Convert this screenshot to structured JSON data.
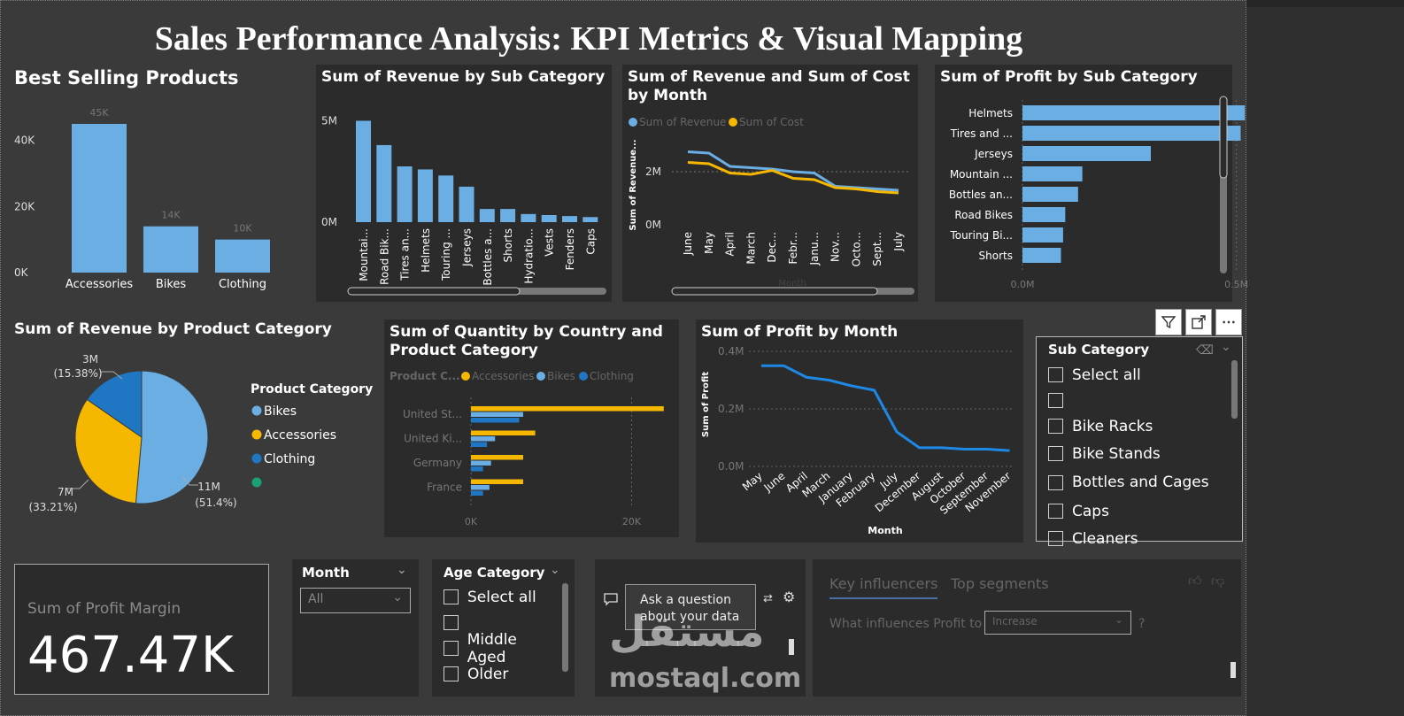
{
  "page_title": "Sales Performance Analysis: KPI Metrics & Visual Mapping",
  "colors": {
    "blue": "#6aaee4",
    "yellow": "#f5b700",
    "dark_blue": "#1f77c4",
    "green": "#1aa178",
    "line_blue": "#1e88e5"
  },
  "best_selling": {
    "title": "Best Selling Products",
    "yticks": [
      "0K",
      "20K",
      "40K"
    ],
    "categories": [
      "Accessories",
      "Bikes",
      "Clothing"
    ],
    "labels": [
      "45K",
      "14K",
      "10K"
    ]
  },
  "rev_subcat": {
    "title": "Sum of Revenue by Sub Category",
    "yticks": [
      "0M",
      "5M"
    ],
    "categories": [
      "Mountai...",
      "Road Bik...",
      "Tires an...",
      "Helmets",
      "Touring ...",
      "Jerseys",
      "Bottles a...",
      "Shorts",
      "Hydratio...",
      "Vests",
      "Fenders",
      "Caps"
    ]
  },
  "rev_cost": {
    "title": "Sum of Revenue and Sum of Cost by Month",
    "legend": [
      "Sum of Revenue",
      "Sum of Cost"
    ],
    "yticks": [
      "0M",
      "2M"
    ],
    "ylabel": "Sum of Revenue...",
    "xlabel": "Month",
    "months": [
      "June",
      "May",
      "April",
      "March",
      "Dec...",
      "Febr...",
      "Janu...",
      "Nov...",
      "Octo...",
      "Sept...",
      "July"
    ]
  },
  "profit_subcat": {
    "title": "Sum of Profit by Sub Category",
    "categories": [
      "Helmets",
      "Tires and ...",
      "Jerseys",
      "Mountain ...",
      "Bottles an...",
      "Road Bikes",
      "Touring Bi...",
      "Shorts"
    ],
    "xticks": [
      "0.0M",
      "0.5M"
    ]
  },
  "pie": {
    "title": "Sum of Revenue by Product Category",
    "legend_title": "Product Category",
    "legend": [
      "Bikes",
      "Accessories",
      "Clothing",
      ""
    ],
    "label_bikes": [
      "11M",
      "(51.4%)"
    ],
    "label_acc": [
      "7M",
      "(33.21%)"
    ],
    "label_cloth": [
      "3M",
      "(15.38%)"
    ]
  },
  "qty_country": {
    "title": "Sum of Quantity by Country and Product Category",
    "legend_title": "Product C...",
    "legend": [
      "Accessories",
      "Bikes",
      "Clothing"
    ],
    "countries": [
      "United St...",
      "United Ki...",
      "Germany",
      "France"
    ],
    "xticks": [
      "0K",
      "20K"
    ]
  },
  "profit_month": {
    "title": "Sum of Profit by Month",
    "yticks": [
      "0.0M",
      "0.2M",
      "0.4M"
    ],
    "ylabel": "Sum of Profit",
    "xlabel": "Month",
    "months": [
      "May",
      "June",
      "April",
      "March",
      "January",
      "February",
      "July",
      "December",
      "August",
      "October",
      "September",
      "November"
    ]
  },
  "subcat_slicer": {
    "title": "Sub Category",
    "items": [
      "Select all",
      "",
      "Bike Racks",
      "Bike Stands",
      "Bottles and Cages",
      "Caps",
      "Cleaners"
    ]
  },
  "kpi": {
    "label": "Sum of Profit Margin",
    "value": "467.47K"
  },
  "month_slicer": {
    "title": "Month",
    "value": "All"
  },
  "age_slicer": {
    "title": "Age Category",
    "items": [
      "Select all",
      "",
      "Middle Aged",
      "Older"
    ]
  },
  "qa": {
    "prompt": "Ask a question about your data"
  },
  "influencers": {
    "tabs": [
      "Key influencers",
      "Top segments"
    ],
    "question_prefix": "What influences Profit to",
    "dropdown": "Increase",
    "question_suffix": "?"
  },
  "watermark": {
    "arabic": "مستقل",
    "latin": "mostaql.com"
  },
  "chart_data": [
    {
      "type": "bar",
      "title": "Best Selling Products",
      "categories": [
        "Accessories",
        "Bikes",
        "Clothing"
      ],
      "values": [
        45000,
        14000,
        10000
      ],
      "ylim": [
        0,
        45000
      ]
    },
    {
      "type": "bar",
      "title": "Sum of Revenue by Sub Category",
      "categories": [
        "Mountai...",
        "Road Bik...",
        "Tires an...",
        "Helmets",
        "Touring ...",
        "Jerseys",
        "Bottles a...",
        "Shorts",
        "Hydratio...",
        "Vests",
        "Fenders",
        "Caps"
      ],
      "values": [
        5.0,
        3.8,
        2.75,
        2.6,
        2.3,
        1.75,
        0.65,
        0.65,
        0.4,
        0.35,
        0.3,
        0.25
      ],
      "ylim": [
        0,
        5.5
      ]
    },
    {
      "type": "line",
      "title": "Sum of Revenue and Sum of Cost by Month",
      "x": [
        "June",
        "May",
        "April",
        "March",
        "Dec...",
        "Febr...",
        "Janu...",
        "Nov...",
        "Octo...",
        "Sept...",
        "July"
      ],
      "series": [
        {
          "name": "Sum of Revenue",
          "values": [
            2.75,
            2.7,
            2.2,
            2.15,
            2.1,
            2.0,
            1.95,
            1.45,
            1.4,
            1.35,
            1.3
          ]
        },
        {
          "name": "Sum of Cost",
          "values": [
            2.35,
            2.3,
            1.95,
            1.9,
            2.05,
            1.75,
            1.7,
            1.4,
            1.35,
            1.25,
            1.2
          ]
        }
      ],
      "ylim": [
        0,
        3.2
      ]
    },
    {
      "type": "bar",
      "title": "Sum of Profit by Sub Category",
      "categories": [
        "Helmets",
        "Tires and ...",
        "Jerseys",
        "Mountain ...",
        "Bottles an...",
        "Road Bikes",
        "Touring Bi...",
        "Shorts"
      ],
      "values": [
        0.52,
        0.51,
        0.3,
        0.14,
        0.13,
        0.1,
        0.095,
        0.09
      ],
      "xlim": [
        0,
        0.6
      ]
    },
    {
      "type": "pie",
      "title": "Sum of Revenue by Product Category",
      "categories": [
        "Bikes",
        "Accessories",
        "Clothing"
      ],
      "values": [
        51.4,
        33.21,
        15.38
      ]
    },
    {
      "type": "bar",
      "title": "Sum of Quantity by Country and Product Category",
      "categories": [
        "United St...",
        "United Ki...",
        "Germany",
        "France"
      ],
      "series": [
        {
          "name": "Accessories",
          "values": [
            24000,
            8000,
            6500,
            6500
          ]
        },
        {
          "name": "Bikes",
          "values": [
            6500,
            3000,
            2500,
            2300
          ]
        },
        {
          "name": "Clothing",
          "values": [
            6000,
            2000,
            1500,
            1500
          ]
        }
      ],
      "xlim": [
        0,
        27000
      ]
    },
    {
      "type": "line",
      "title": "Sum of Profit by Month",
      "x": [
        "May",
        "June",
        "April",
        "March",
        "January",
        "February",
        "July",
        "December",
        "August",
        "October",
        "September",
        "November"
      ],
      "series": [
        {
          "name": "Sum of Profit",
          "values": [
            0.35,
            0.35,
            0.31,
            0.3,
            0.28,
            0.265,
            0.12,
            0.065,
            0.065,
            0.06,
            0.06,
            0.055
          ]
        }
      ],
      "ylim": [
        0,
        0.4
      ]
    }
  ]
}
